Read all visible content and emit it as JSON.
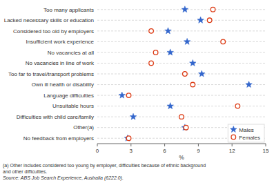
{
  "chart_data": {
    "type": "dot",
    "orientation": "horizontal",
    "categories": [
      "Too many applicants",
      "Lacked necessary skills or education",
      "Considered too old by employers",
      "Insufficient work experience",
      "No vacancies at all",
      "No vacancies in line of work",
      "Too far to travel/transport problems",
      "Own ill health or disability",
      "Language difficulties",
      "Unsuitable hours",
      "Difficulties with child care/family",
      "Other(a)",
      "No feedback from employers"
    ],
    "series": [
      {
        "name": "Males",
        "marker": "star",
        "values": [
          7.8,
          9.2,
          6.3,
          8.0,
          6.5,
          8.5,
          9.3,
          13.5,
          2.2,
          6.5,
          3.2,
          7.8,
          2.7
        ]
      },
      {
        "name": "Females",
        "marker": "circle",
        "values": [
          10.3,
          10.0,
          4.8,
          11.2,
          5.2,
          4.8,
          7.8,
          8.5,
          2.8,
          12.5,
          7.5,
          7.9,
          2.8
        ]
      }
    ],
    "x_label": "%",
    "xlim": [
      0,
      15
    ],
    "xticks": [
      0,
      3,
      6,
      9,
      12,
      15
    ],
    "grid": true,
    "legend": "lower right",
    "annotations": [
      "(a) Other includes considered too young by employer, difficulties because of ethnic background",
      "and other difficulties.",
      "Source: ABS Job Search Experience, Australia (6222.0)."
    ]
  }
}
